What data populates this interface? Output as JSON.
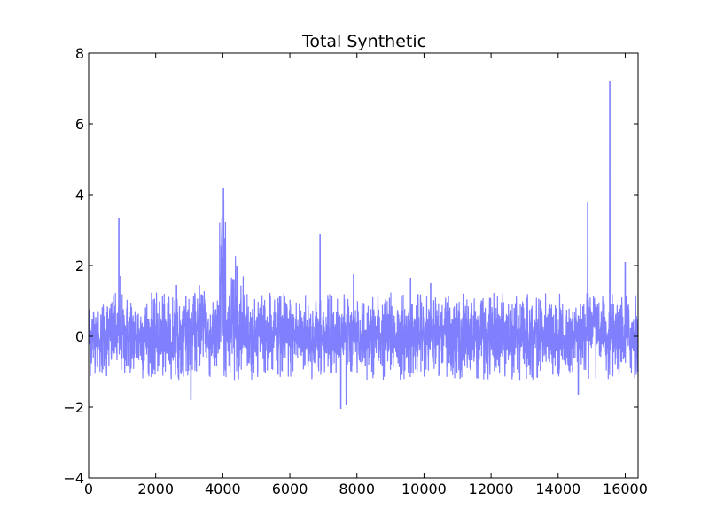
{
  "chart_data": {
    "type": "line",
    "title": "Total Synthetic",
    "xlabel": "",
    "ylabel": "",
    "xlim": [
      0,
      16384
    ],
    "ylim": [
      -4,
      8
    ],
    "x_ticks": [
      0,
      2000,
      4000,
      6000,
      8000,
      10000,
      12000,
      14000,
      16000
    ],
    "y_ticks": [
      -4,
      -2,
      0,
      2,
      4,
      6,
      8
    ],
    "x_tick_labels": [
      "0",
      "2000",
      "4000",
      "6000",
      "8000",
      "10000",
      "12000",
      "14000",
      "16000"
    ],
    "y_tick_labels": [
      "−4",
      "−2",
      "0",
      "2",
      "4",
      "6",
      "8"
    ],
    "grid": false,
    "legend": "none",
    "series": [
      {
        "color": "#8080ff",
        "description": "dense noise signal over 16384 samples",
        "noise_band": [
          -1.3,
          1.3
        ],
        "bursts": [
          {
            "x_range": [
              3300,
              3500
            ],
            "amplitude": 1.9
          },
          {
            "x_range": [
              3900,
              4100
            ],
            "amplitude": 4.2
          },
          {
            "x_range": [
              4250,
              4400
            ],
            "amplitude": 2.1
          },
          {
            "x_range": [
              4500,
              4650
            ],
            "amplitude": 1.9
          }
        ],
        "spikes": [
          {
            "x": 900,
            "y": 3.35
          },
          {
            "x": 950,
            "y": 1.7
          },
          {
            "x": 2620,
            "y": 1.45
          },
          {
            "x": 3050,
            "y": -1.8
          },
          {
            "x": 4020,
            "y": 4.2
          },
          {
            "x": 4420,
            "y": 2.0
          },
          {
            "x": 6900,
            "y": 2.9
          },
          {
            "x": 7520,
            "y": -2.05
          },
          {
            "x": 7680,
            "y": -1.95
          },
          {
            "x": 7900,
            "y": 1.75
          },
          {
            "x": 9600,
            "y": 1.65
          },
          {
            "x": 10200,
            "y": 1.5
          },
          {
            "x": 14600,
            "y": -1.65
          },
          {
            "x": 14880,
            "y": 3.8
          },
          {
            "x": 15540,
            "y": 7.2
          },
          {
            "x": 16000,
            "y": 2.1
          }
        ]
      }
    ]
  }
}
